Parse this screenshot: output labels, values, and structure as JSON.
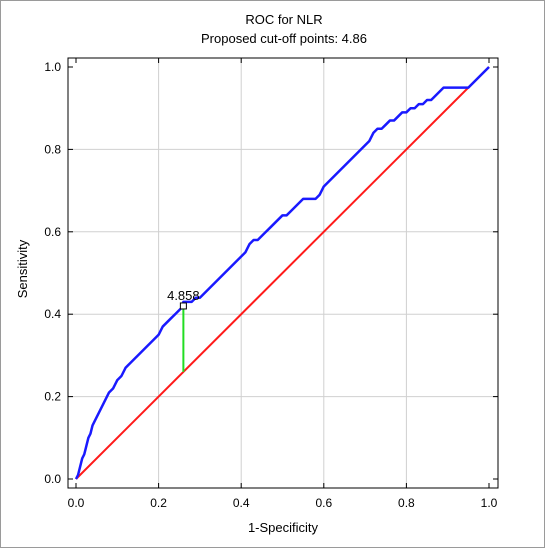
{
  "chart_data": {
    "type": "line",
    "title": "ROC for NLR",
    "subtitle": "Proposed cut-off points: 4.86",
    "xlabel": "1-Specificity",
    "ylabel": "Sensitivity",
    "xlim": [
      0,
      1
    ],
    "ylim": [
      0,
      1
    ],
    "x_ticks": [
      "0.0",
      "0.2",
      "0.4",
      "0.6",
      "0.8",
      "1.0"
    ],
    "y_ticks": [
      "0.0",
      "0.2",
      "0.4",
      "0.6",
      "0.8",
      "1.0"
    ],
    "grid": true,
    "colors": {
      "roc": "#1a1aff",
      "reference": "#ff1a1a",
      "cutoff": "#22dd22",
      "grid": "#d0d0d0"
    },
    "series": [
      {
        "x": [
          0.0,
          0.005,
          0.01,
          0.015,
          0.02,
          0.025,
          0.03,
          0.035,
          0.04,
          0.045,
          0.05,
          0.055,
          0.06,
          0.065,
          0.07,
          0.08,
          0.09,
          0.1,
          0.11,
          0.12,
          0.13,
          0.14,
          0.15,
          0.16,
          0.17,
          0.18,
          0.19,
          0.2,
          0.21,
          0.22,
          0.23,
          0.24,
          0.25,
          0.26,
          0.26,
          0.27,
          0.28,
          0.29,
          0.3,
          0.31,
          0.32,
          0.33,
          0.34,
          0.35,
          0.36,
          0.37,
          0.38,
          0.39,
          0.4,
          0.41,
          0.42,
          0.43,
          0.44,
          0.45,
          0.46,
          0.47,
          0.48,
          0.49,
          0.5,
          0.51,
          0.52,
          0.53,
          0.54,
          0.55,
          0.56,
          0.57,
          0.58,
          0.59,
          0.6,
          0.61,
          0.62,
          0.63,
          0.64,
          0.65,
          0.66,
          0.67,
          0.68,
          0.69,
          0.7,
          0.71,
          0.72,
          0.73,
          0.74,
          0.75,
          0.76,
          0.77,
          0.78,
          0.79,
          0.8,
          0.81,
          0.82,
          0.83,
          0.84,
          0.85,
          0.86,
          0.87,
          0.88,
          0.89,
          0.9,
          0.91,
          0.92,
          0.93,
          0.94,
          0.95,
          0.96,
          0.97,
          0.98,
          0.99,
          1.0
        ],
        "values": [
          0.0,
          0.01,
          0.03,
          0.05,
          0.06,
          0.08,
          0.1,
          0.11,
          0.13,
          0.14,
          0.15,
          0.16,
          0.17,
          0.18,
          0.19,
          0.21,
          0.22,
          0.24,
          0.25,
          0.27,
          0.28,
          0.29,
          0.3,
          0.31,
          0.32,
          0.33,
          0.34,
          0.35,
          0.37,
          0.38,
          0.39,
          0.4,
          0.41,
          0.42,
          0.43,
          0.43,
          0.43,
          0.44,
          0.44,
          0.45,
          0.46,
          0.47,
          0.48,
          0.49,
          0.5,
          0.51,
          0.52,
          0.53,
          0.54,
          0.55,
          0.57,
          0.58,
          0.58,
          0.59,
          0.6,
          0.61,
          0.62,
          0.63,
          0.64,
          0.64,
          0.65,
          0.66,
          0.67,
          0.68,
          0.68,
          0.68,
          0.68,
          0.69,
          0.71,
          0.72,
          0.73,
          0.74,
          0.75,
          0.76,
          0.77,
          0.78,
          0.79,
          0.8,
          0.81,
          0.82,
          0.84,
          0.85,
          0.85,
          0.86,
          0.87,
          0.87,
          0.88,
          0.89,
          0.89,
          0.9,
          0.9,
          0.91,
          0.91,
          0.92,
          0.92,
          0.93,
          0.94,
          0.95,
          0.95,
          0.95,
          0.95,
          0.95,
          0.95,
          0.95,
          0.96,
          0.97,
          0.98,
          0.99,
          1.0
        ]
      },
      {
        "x": [
          0.0,
          1.0
        ],
        "values": [
          0.0,
          1.0
        ]
      }
    ],
    "cutoff": {
      "label": "4.858",
      "x": 0.26,
      "sensitivity": 0.42,
      "reference": 0.26
    }
  }
}
